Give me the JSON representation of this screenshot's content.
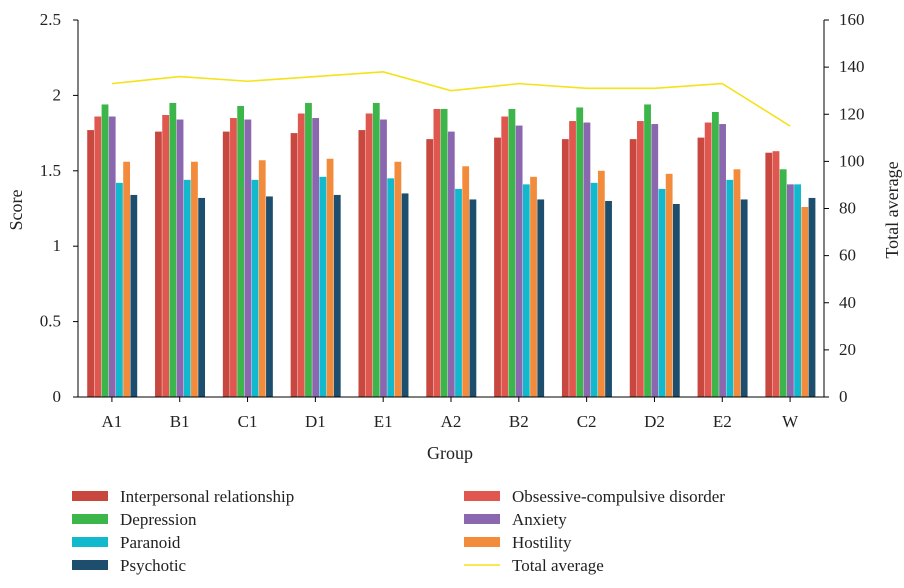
{
  "chart_data": {
    "type": "bar",
    "title": "",
    "xlabel": "Group",
    "ylabel": "Score",
    "y2label": "Total average",
    "ylim": [
      0,
      2.5
    ],
    "y2lim": [
      0,
      160
    ],
    "yticks": [
      "0",
      "0.5",
      "1",
      "1.5",
      "2",
      "2.5"
    ],
    "y2ticks": [
      "0",
      "20",
      "40",
      "60",
      "80",
      "100",
      "120",
      "140",
      "160"
    ],
    "categories": [
      "A1",
      "B1",
      "C1",
      "D1",
      "E1",
      "A2",
      "B2",
      "C2",
      "D2",
      "E2",
      "W"
    ],
    "series": [
      {
        "name": "Interpersonal relationship",
        "color": "#c8473e",
        "values": [
          1.77,
          1.76,
          1.76,
          1.75,
          1.77,
          1.71,
          1.72,
          1.71,
          1.71,
          1.72,
          1.62
        ]
      },
      {
        "name": "Obsessive-compulsive disorder",
        "color": "#e0574f",
        "values": [
          1.86,
          1.87,
          1.85,
          1.88,
          1.88,
          1.91,
          1.86,
          1.83,
          1.83,
          1.82,
          1.63
        ]
      },
      {
        "name": "Depression",
        "color": "#3cb54a",
        "values": [
          1.94,
          1.95,
          1.93,
          1.95,
          1.95,
          1.91,
          1.91,
          1.92,
          1.94,
          1.89,
          1.51
        ]
      },
      {
        "name": "Anxiety",
        "color": "#8b67b0",
        "values": [
          1.86,
          1.84,
          1.84,
          1.85,
          1.84,
          1.76,
          1.8,
          1.82,
          1.81,
          1.81,
          1.41
        ]
      },
      {
        "name": "Paranoid",
        "color": "#12b8cc",
        "values": [
          1.42,
          1.44,
          1.44,
          1.46,
          1.45,
          1.38,
          1.41,
          1.42,
          1.38,
          1.44,
          1.41
        ]
      },
      {
        "name": "Hostility",
        "color": "#f28c3c",
        "values": [
          1.56,
          1.56,
          1.57,
          1.58,
          1.56,
          1.53,
          1.46,
          1.5,
          1.48,
          1.51,
          1.26
        ]
      },
      {
        "name": "Psychotic",
        "color": "#1d4e6e",
        "values": [
          1.34,
          1.32,
          1.33,
          1.34,
          1.35,
          1.31,
          1.31,
          1.3,
          1.28,
          1.31,
          1.32
        ]
      }
    ],
    "line": {
      "name": "Total average",
      "color": "#f5e21a",
      "axis": "right",
      "values": [
        133,
        136,
        134,
        136,
        138,
        130,
        133,
        131,
        131,
        133,
        115
      ]
    },
    "legend": {
      "placement": "bottom",
      "items": [
        {
          "label": "Interpersonal relationship",
          "kind": "bar",
          "color": "#c8473e"
        },
        {
          "label": "Obsessive-compulsive disorder",
          "kind": "bar",
          "color": "#e0574f"
        },
        {
          "label": "Depression",
          "kind": "bar",
          "color": "#3cb54a"
        },
        {
          "label": "Anxiety",
          "kind": "bar",
          "color": "#8b67b0"
        },
        {
          "label": "Paranoid",
          "kind": "bar",
          "color": "#12b8cc"
        },
        {
          "label": "Hostility",
          "kind": "bar",
          "color": "#f28c3c"
        },
        {
          "label": "Psychotic",
          "kind": "bar",
          "color": "#1d4e6e"
        },
        {
          "label": "Total average",
          "kind": "line",
          "color": "#f5e21a"
        }
      ]
    },
    "grid": false
  }
}
